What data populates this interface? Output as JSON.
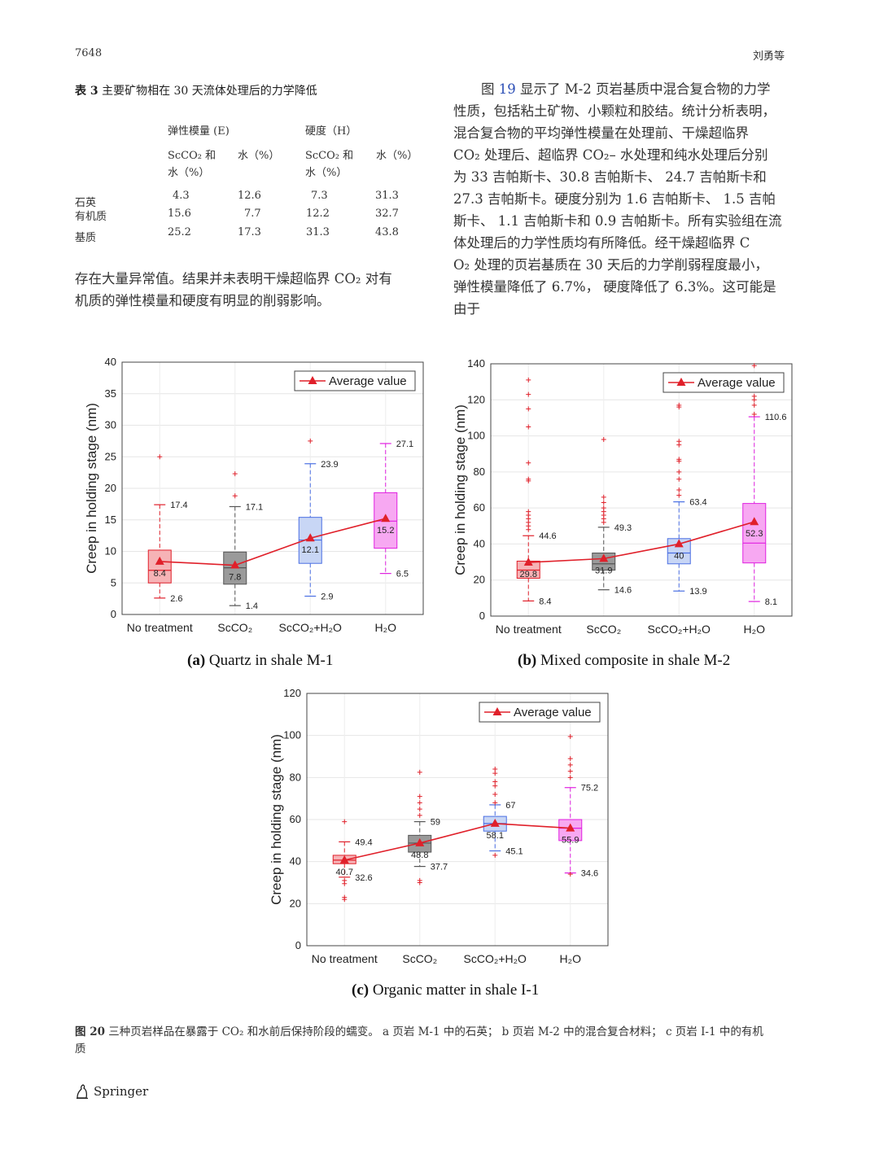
{
  "header": {
    "page_number": "7648",
    "authors": "刘勇等"
  },
  "table3": {
    "caption_label": "表 3",
    "caption_text": "主要矿物相在 30 天流体处理后的力学降低",
    "group_headers": [
      "弹性模量 (E)",
      "硬度（H）"
    ],
    "sub_headers": [
      "ScCO₂ 和",
      "水（%）",
      "ScCO₂ 和",
      "水（%）"
    ],
    "sub_headers_line2": [
      "水（%）",
      "水（%）"
    ],
    "rows": [
      {
        "name": "石英",
        "cells": [
          "4.3",
          "12.6",
          "7.3",
          "31.3"
        ]
      },
      {
        "name": "有机质",
        "cells": [
          "15.6",
          "7.7",
          "12.2",
          "32.7"
        ]
      },
      {
        "name": "基质",
        "cells": [
          "25.2",
          "17.3",
          "31.3",
          "43.8"
        ]
      }
    ]
  },
  "left_text": [
    "存在大量异常值。结果并未表明干燥超临界 CO₂ 对有",
    "机质的弹性模量和硬度有明显的削弱影响。"
  ],
  "right_text": {
    "line1_pre": "图 ",
    "line1_ref": "19",
    "line1_post": " 显示了 M-2 页岩基质中混合复合物的力学",
    "lines": [
      "性质，包括粘土矿物、小颗粒和胶结。统计分析表明，",
      "混合复合物的平均弹性模量在处理前、干燥超临界",
      "CO₂ 处理后、超临界 CO₂– 水处理和纯水处理后分别",
      "为 33 吉帕斯卡、30.8 吉帕斯卡、 24.7 吉帕斯卡和",
      "27.3 吉帕斯卡。硬度分别为 1.6 吉帕斯卡、 1.5 吉帕",
      "斯卡、 1.1 吉帕斯卡和 0.9 吉帕斯卡。所有实验组在流",
      "体处理后的力学性质均有所降低。经干燥超临界 C",
      "O₂ 处理的页岩基质在 30 天后的力学削弱程度最小，",
      "弹性模量降低了 6.7%， 硬度降低了 6.3%。这可能是",
      "由于"
    ]
  },
  "chart_data": [
    {
      "type": "box",
      "subcaption_label": "(a)",
      "subcaption_text": "Quartz in shale M-1",
      "ylabel": "Creep in holding stage (nm)",
      "ylim": [
        0,
        40
      ],
      "yticks": [
        "0",
        "5",
        "10",
        "15",
        "20",
        "25",
        "30",
        "35",
        "40"
      ],
      "categories": [
        "No treatment",
        "ScCO₂",
        "ScCO₂+H₂O",
        "H₂O"
      ],
      "legend": "Average value",
      "colors": [
        "#e0202a",
        "#555555",
        "#4a6fe3",
        "#e020e0"
      ],
      "fills": [
        "#f6b3b6",
        "#9a9a9a",
        "#c8d6f5",
        "#f7a8f2"
      ],
      "boxes": [
        {
          "q1": 5,
          "median": 7,
          "q3": 10.2,
          "lower": 2.6,
          "upper": 17.4,
          "mean": 8.4,
          "outliers": [
            25
          ]
        },
        {
          "q1": 4.8,
          "median": 7.4,
          "q3": 9.9,
          "lower": 1.4,
          "upper": 17.1,
          "mean": 7.8,
          "outliers": [
            18.8,
            22.3
          ]
        },
        {
          "q1": 8.1,
          "median": 11.8,
          "q3": 15.4,
          "lower": 2.9,
          "upper": 23.9,
          "mean": 12.1,
          "outliers": [
            27.5
          ]
        },
        {
          "q1": 10.5,
          "median": 14.8,
          "q3": 19.3,
          "lower": 6.5,
          "upper": 27.1,
          "mean": 15.2,
          "outliers": []
        }
      ],
      "upper_labels": [
        "17.4",
        "17.1",
        "23.9",
        "27.1"
      ],
      "lower_labels": [
        "2.6",
        "1.4",
        "2.9",
        "6.5"
      ],
      "mean_labels": [
        "8.4",
        "7.8",
        "12.1",
        "15.2"
      ]
    },
    {
      "type": "box",
      "subcaption_label": "(b)",
      "subcaption_text": "Mixed composite in shale M-2",
      "ylabel": "Creep in holding stage (nm)",
      "ylim": [
        0,
        140
      ],
      "yticks": [
        "0",
        "20",
        "40",
        "60",
        "80",
        "100",
        "120",
        "140"
      ],
      "categories": [
        "No treatment",
        "ScCO₂",
        "ScCO₂+H₂O",
        "H₂O"
      ],
      "legend": "Average value",
      "colors": [
        "#e0202a",
        "#555555",
        "#4a6fe3",
        "#e020e0"
      ],
      "fills": [
        "#f6b3b6",
        "#9a9a9a",
        "#c8d6f5",
        "#f7a8f2"
      ],
      "boxes": [
        {
          "q1": 21,
          "median": 25.5,
          "q3": 30.5,
          "lower": 8.4,
          "upper": 44.6,
          "mean": 29.8,
          "outliers": [
            48,
            50,
            52,
            54,
            56,
            58,
            75,
            76,
            85,
            105,
            115,
            123,
            131
          ]
        },
        {
          "q1": 25.5,
          "median": 29,
          "q3": 35,
          "lower": 14.6,
          "upper": 49.3,
          "mean": 31.9,
          "outliers": [
            52,
            54,
            56,
            58,
            60,
            63,
            66,
            98
          ]
        },
        {
          "q1": 29,
          "median": 35,
          "q3": 43,
          "lower": 13.9,
          "upper": 63.4,
          "mean": 40,
          "outliers": [
            67,
            70,
            76,
            80,
            86,
            87,
            95,
            97,
            116,
            117
          ]
        },
        {
          "q1": 29.5,
          "median": 40.5,
          "q3": 62.5,
          "lower": 8.1,
          "upper": 110.6,
          "mean": 52.3,
          "outliers": [
            112,
            117,
            120,
            122,
            139
          ]
        }
      ],
      "upper_labels": [
        "44.6",
        "49.3",
        "63.4",
        "110.6"
      ],
      "lower_labels": [
        "8.4",
        "14.6",
        "13.9",
        "8.1"
      ],
      "mean_labels": [
        "29.8",
        "31.9",
        "40",
        "52.3"
      ]
    },
    {
      "type": "box",
      "subcaption_label": "(c)",
      "subcaption_text": "Organic matter in shale I-1",
      "ylabel": "Creep in holding stage (nm)",
      "ylim": [
        0,
        120
      ],
      "yticks": [
        "0",
        "20",
        "40",
        "60",
        "80",
        "100",
        "120"
      ],
      "categories": [
        "No treatment",
        "ScCO₂",
        "ScCO₂+H₂O",
        "H₂O"
      ],
      "legend": "Average value",
      "colors": [
        "#e0202a",
        "#555555",
        "#4a6fe3",
        "#e020e0"
      ],
      "fills": [
        "#f6b3b6",
        "#9a9a9a",
        "#c8d6f5",
        "#f7a8f2"
      ],
      "boxes": [
        {
          "q1": 39,
          "median": 40.7,
          "q3": 43,
          "lower": 32.6,
          "upper": 49.4,
          "mean": 40.7,
          "outliers": [
            22,
            23,
            29.5,
            31,
            59
          ]
        },
        {
          "q1": 44.5,
          "median": 48.8,
          "q3": 52.5,
          "lower": 37.7,
          "upper": 59,
          "mean": 48.8,
          "outliers": [
            30,
            31,
            62,
            65,
            68,
            71,
            82.5
          ]
        },
        {
          "q1": 54.5,
          "median": 58.1,
          "q3": 61.5,
          "lower": 45.1,
          "upper": 67,
          "mean": 58.1,
          "outliers": [
            43,
            68,
            72,
            76,
            78,
            82,
            84
          ]
        },
        {
          "q1": 50,
          "median": 55.9,
          "q3": 60,
          "lower": 34.6,
          "upper": 75.2,
          "mean": 55.9,
          "outliers": [
            34,
            80,
            83,
            86,
            89,
            99.5
          ]
        }
      ],
      "upper_labels": [
        "49.4",
        "59",
        "67",
        "75.2"
      ],
      "lower_labels": [
        "32.6",
        "37.7",
        "45.1",
        "34.6"
      ],
      "mean_labels": [
        "40.7",
        "48.8",
        "58.1",
        "55.9"
      ]
    }
  ],
  "figure_caption": {
    "label": "图 20",
    "text": "三种页岩样品在暴露于 CO₂ 和水前后保持阶段的蠕变。 a 页岩 M-1 中的石英； b 页岩 M-2 中的混合复合材料； c 页岩 I-1 中的有机",
    "text_line2": "质"
  },
  "footer": {
    "publisher": "Springer"
  }
}
